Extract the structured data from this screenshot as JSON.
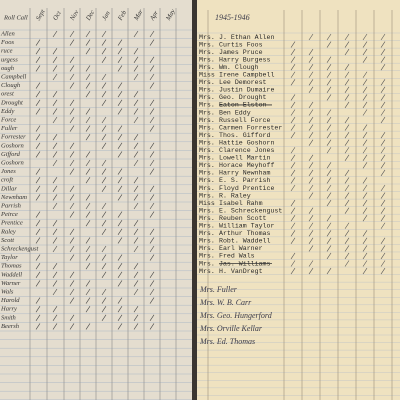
{
  "left_page": {
    "title": "Roll Call",
    "months": [
      "Sept",
      "Oct",
      "Nov",
      "Dec",
      "Jan",
      "Feb",
      "Mar",
      "Apr",
      "May"
    ],
    "names": [
      "Allen",
      "Foos",
      "ruce",
      "urgess",
      "ough",
      "Campbell",
      "Clough",
      "orest",
      "Drought",
      "Eddy",
      "Force",
      "Fuller",
      "Forrester",
      "Goshorn",
      "Gifford",
      "Goshorn",
      "Jones",
      "croft",
      "Dillar",
      "Newnham",
      "Parrish",
      "Peirce",
      "Prentice",
      "Raley",
      "Scott",
      "Schreckengust",
      "Taylor",
      "Thomas",
      "Waddell",
      "Warner",
      "Wals",
      "Harold",
      "Harry",
      "Smith",
      "Beersh"
    ]
  },
  "right_page": {
    "year": "1945-1946",
    "typed": [
      {
        "title": "Mrs.",
        "name": "J. Ethan Allen"
      },
      {
        "title": "Mrs.",
        "name": "Curtis Foos"
      },
      {
        "title": "Mrs.",
        "name": "James Pruce"
      },
      {
        "title": "Mrs.",
        "name": "Harry Burgess"
      },
      {
        "title": "Mrs.",
        "name": "Wm. Clough"
      },
      {
        "title": "Miss",
        "name": "Irene Campbell"
      },
      {
        "title": "Mrs.",
        "name": "Lee Demorest"
      },
      {
        "title": "Mrs.",
        "name": "Justin Dumaire"
      },
      {
        "title": "Mrs.",
        "name": "Geo. Drought"
      },
      {
        "title": "Mrs.",
        "name": "Eaton Elston"
      },
      {
        "title": "Mrs.",
        "name": "Ben Eddy"
      },
      {
        "title": "Mrs.",
        "name": "Russell Force"
      },
      {
        "title": "Mrs.",
        "name": "Carmen Forrester"
      },
      {
        "title": "Mrs.",
        "name": "Thos. Gifford"
      },
      {
        "title": "Mrs.",
        "name": "Hattie Goshorn"
      },
      {
        "title": "Mrs.",
        "name": "Clarence Jones"
      },
      {
        "title": "Mrs.",
        "name": "Lowell Martin"
      },
      {
        "title": "Mrs.",
        "name": "Horace Meyhoff"
      },
      {
        "title": "Mrs.",
        "name": "Harry Newnham"
      },
      {
        "title": "Mrs.",
        "name": "E. S. Parrish"
      },
      {
        "title": "Mrs.",
        "name": "Floyd Prentice"
      },
      {
        "title": "Mrs.",
        "name": "R. Raley"
      },
      {
        "title": "Miss",
        "name": "Isabel Rahm"
      },
      {
        "title": "Mrs.",
        "name": "E. Schreckengust"
      },
      {
        "title": "Mrs.",
        "name": "Reuben Scott"
      },
      {
        "title": "Mrs.",
        "name": "William Taylor"
      },
      {
        "title": "Mrs.",
        "name": "Arthur Thomas"
      },
      {
        "title": "Mrs.",
        "name": "Robt. Waddell"
      },
      {
        "title": "Mrs.",
        "name": "Earl Warner"
      },
      {
        "title": "Mrs.",
        "name": "Fred Wals"
      },
      {
        "title": "Mrs.",
        "name": "Jas. Williams"
      },
      {
        "title": "Mrs.",
        "name": "H. VanDregt"
      }
    ],
    "handwritten": [
      "Mrs. Fuller",
      "Mrs. W. B. Carr",
      "Mrs. Geo. Hungerford",
      "Mrs. Orville Kellar",
      "Mrs. Ed. Thomas"
    ]
  }
}
